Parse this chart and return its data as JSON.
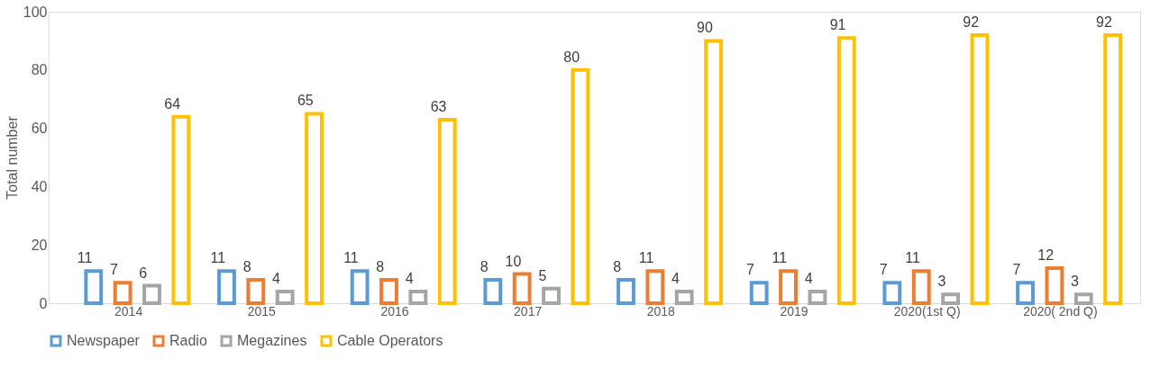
{
  "chart_data": {
    "type": "bar",
    "ylabel": "Total number",
    "categories": [
      "2014",
      "2015",
      "2016",
      "2017",
      "2018",
      "2019",
      "2020(1st Q)",
      "2020( 2nd Q)"
    ],
    "series": [
      {
        "name": "Newspaper",
        "color": "#5b9bd5",
        "values": [
          11,
          11,
          11,
          8,
          8,
          7,
          7,
          7
        ]
      },
      {
        "name": "Radio",
        "color": "#ed7d31",
        "values": [
          7,
          8,
          8,
          10,
          11,
          11,
          11,
          12
        ]
      },
      {
        "name": "Megazines",
        "color": "#a5a5a5",
        "values": [
          6,
          4,
          4,
          5,
          4,
          4,
          3,
          3
        ]
      },
      {
        "name": "Cable Operators",
        "color": "#ffc000",
        "values": [
          64,
          65,
          63,
          80,
          90,
          91,
          92,
          92
        ]
      }
    ],
    "ylim": [
      0,
      100
    ],
    "yticks": [
      0,
      20,
      40,
      60,
      80,
      100
    ],
    "grid": false,
    "legend": "bottom",
    "data_labels": true
  }
}
